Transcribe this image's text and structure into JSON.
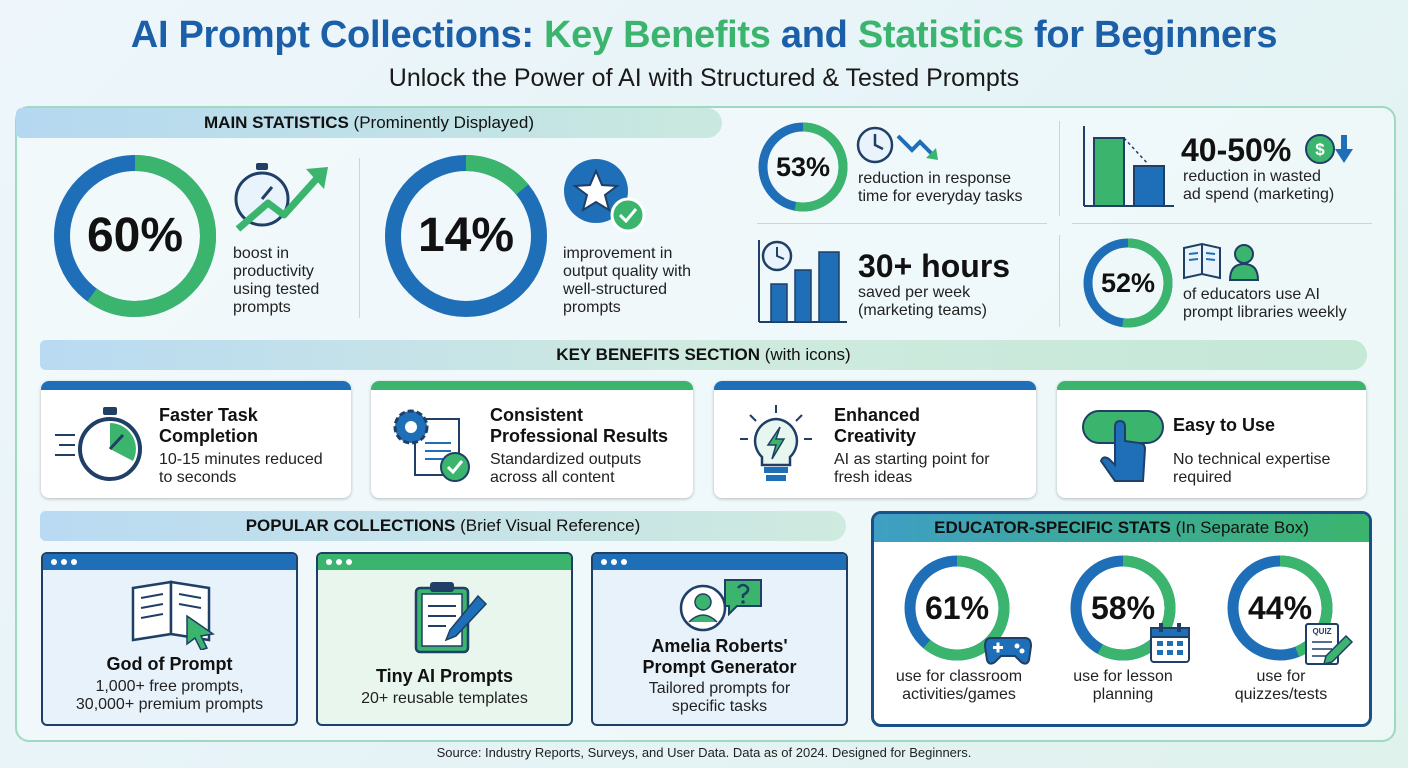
{
  "header": {
    "title_part1": "AI Prompt Collections: ",
    "title_part2": "Key Benefits",
    "title_part3": " and ",
    "title_part4": "Statistics",
    "title_part5": " for Beginners",
    "subtitle": "Unlock the Power of AI with Structured & Tested Prompts"
  },
  "main_stats": {
    "band_bold": "MAIN STATISTICS",
    "band_rest": " (Prominently Displayed)",
    "stats": [
      {
        "value": "60%",
        "text": "boost in productivity using tested prompts",
        "lines": [
          "boost in",
          "productivity",
          "using tested",
          "prompts"
        ],
        "fraction": 0.6
      },
      {
        "value": "14%",
        "text": "improvement in output quality with well-structured prompts",
        "lines": [
          "improvement in",
          "output quality with",
          "well-structured",
          "prompts"
        ],
        "fraction": 0.14
      }
    ]
  },
  "side_stats": [
    {
      "value": "53%",
      "lines": [
        "reduction in response",
        "time for everyday tasks"
      ],
      "fraction": 0.53
    },
    {
      "value": "40-50%",
      "lines": [
        "reduction in wasted",
        "ad spend (marketing)"
      ]
    },
    {
      "value": "30+ hours",
      "lines": [
        "saved per week",
        "(marketing teams)"
      ]
    },
    {
      "value": "52%",
      "lines": [
        "of educators use AI",
        "prompt libraries weekly"
      ],
      "fraction": 0.52
    }
  ],
  "key_benefits": {
    "band_bold": "KEY BENEFITS SECTION",
    "band_rest": " (with icons)",
    "cards": [
      {
        "title_lines": [
          "Faster Task",
          "Completion"
        ],
        "desc_lines": [
          "10-15 minutes reduced",
          "to seconds"
        ],
        "accent": "#1f6fb8"
      },
      {
        "title_lines": [
          "Consistent",
          "Professional Results"
        ],
        "desc_lines": [
          "Standardized outputs",
          "across all content"
        ],
        "accent": "#3bb56d"
      },
      {
        "title_lines": [
          "Enhanced",
          "Creativity"
        ],
        "desc_lines": [
          "AI as starting point for",
          "fresh ideas"
        ],
        "accent": "#1f6fb8"
      },
      {
        "title_lines": [
          "Easy to Use"
        ],
        "desc_lines": [
          "No technical expertise",
          "required"
        ],
        "accent": "#3bb56d"
      }
    ]
  },
  "popular": {
    "band_bold": "POPULAR COLLECTIONS",
    "band_rest": " (Brief Visual Reference)",
    "items": [
      {
        "title_lines": [
          "God of Prompt"
        ],
        "desc_lines": [
          "1,000+ free prompts,",
          "30,000+ premium prompts"
        ]
      },
      {
        "title_lines": [
          "Tiny AI Prompts"
        ],
        "desc_lines": [
          "20+ reusable templates"
        ]
      },
      {
        "title_lines": [
          "Amelia Roberts'",
          "Prompt Generator"
        ],
        "desc_lines": [
          "Tailored prompts for",
          "specific tasks"
        ]
      }
    ]
  },
  "educator": {
    "header_bold": "EDUCATOR-SPECIFIC STATS",
    "header_rest": " (In Separate Box)",
    "stats": [
      {
        "value": "61%",
        "lines": [
          "use for classroom",
          "activities/games"
        ],
        "fraction": 0.61
      },
      {
        "value": "58%",
        "lines": [
          "use for lesson",
          "planning"
        ],
        "fraction": 0.58
      },
      {
        "value": "44%",
        "lines": [
          "use for",
          "quizzes/tests"
        ],
        "fraction": 0.44
      }
    ],
    "quiz_label": "QUIZ"
  },
  "icon_labels": {
    "dollar": "$"
  },
  "source": "Source: Industry Reports, Surveys, and User Data. Data as of 2024. Designed for Beginners.",
  "colors": {
    "blue": "#1f6fb8",
    "green": "#3bb56d",
    "navy": "#1b4f87"
  }
}
